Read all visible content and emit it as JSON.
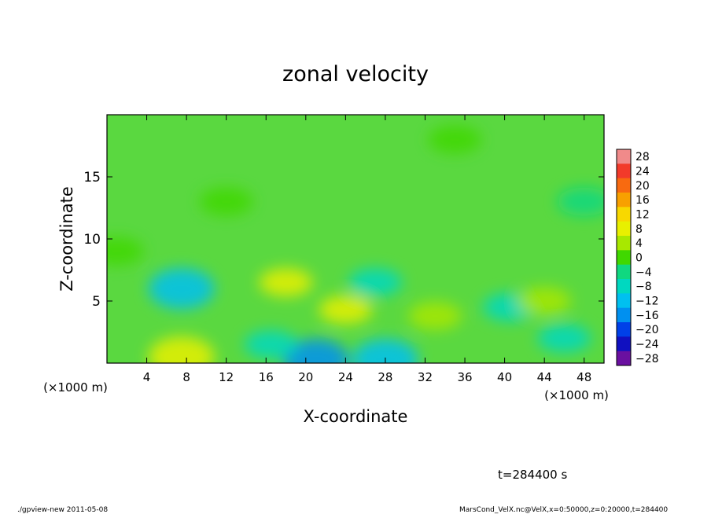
{
  "chart_data": {
    "type": "heatmap",
    "title": "zonal velocity",
    "xlabel": "X-coordinate",
    "ylabel": "Z-coordinate",
    "x_unit_left": "(×1000 m)",
    "x_unit_right": "(×1000 m)",
    "xlim": [
      0,
      50
    ],
    "ylim": [
      0,
      20
    ],
    "x_ticks": [
      "4",
      "8",
      "12",
      "16",
      "20",
      "24",
      "28",
      "32",
      "36",
      "40",
      "44",
      "48"
    ],
    "y_ticks": [
      "5",
      "10",
      "15"
    ],
    "colorbar_labels": [
      "28",
      "24",
      "20",
      "16",
      "12",
      "8",
      "4",
      "0",
      "−4",
      "−8",
      "−12",
      "−16",
      "−20",
      "−24",
      "−28"
    ],
    "colorbar_colors": [
      "#f08a8a",
      "#f23a2a",
      "#f86a10",
      "#f8a000",
      "#f8d800",
      "#e8f000",
      "#a8e800",
      "#40d800",
      "#10d880",
      "#00d8c0",
      "#00c0f0",
      "#0090f0",
      "#0040e8",
      "#1010c0",
      "#6a10a0"
    ],
    "field_blobs": [
      {
        "x": 7.5,
        "z": 6,
        "value": -10
      },
      {
        "x": 7.5,
        "z": 0.5,
        "value": 10
      },
      {
        "x": 21,
        "z": 0.3,
        "value": -14
      },
      {
        "x": 28,
        "z": 0.3,
        "value": -10
      },
      {
        "x": 18,
        "z": 6.5,
        "value": 8
      },
      {
        "x": 24,
        "z": 4.3,
        "value": 8
      },
      {
        "x": 33,
        "z": 3.8,
        "value": 7
      },
      {
        "x": 16.5,
        "z": 1.5,
        "value": -8
      },
      {
        "x": 27,
        "z": 6.5,
        "value": -5
      },
      {
        "x": 40.5,
        "z": 4.5,
        "value": -7
      },
      {
        "x": 46,
        "z": 2,
        "value": -6
      },
      {
        "x": 44,
        "z": 5,
        "value": 4
      },
      {
        "x": 35,
        "z": 18,
        "value": 3
      },
      {
        "x": 12,
        "z": 13,
        "value": 2
      },
      {
        "x": 1,
        "z": 9,
        "value": 3
      },
      {
        "x": 48,
        "z": 13,
        "value": -3
      }
    ]
  },
  "time_label": "t=284400 s",
  "footer_left": "./gpview-new   2011-05-08",
  "footer_right": "MarsCond_VelX.nc@VelX,x=0:50000,z=0:20000,t=284400"
}
